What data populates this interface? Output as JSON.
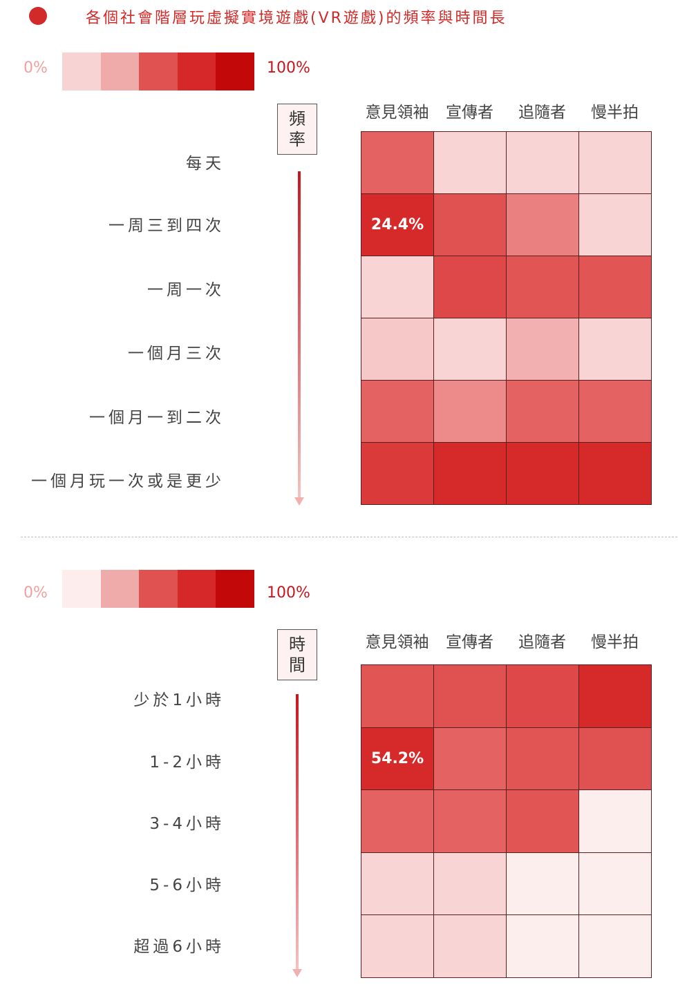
{
  "title": "各個社會階層玩虛擬實境遊戲(VR遊戲)的頻率與時間長",
  "colors": {
    "accent": "#d12a28"
  },
  "charts": [
    {
      "legend": {
        "min_label": "0%",
        "max_label": "100%",
        "swatches": [
          "#f8d3d3",
          "#efaaaa",
          "#e05252",
          "#d62828",
          "#c20808"
        ]
      },
      "axis_label": "頻率"
    },
    {
      "legend": {
        "min_label": "0%",
        "max_label": "100%",
        "swatches": [
          "#fdeded",
          "#efaaaa",
          "#e05252",
          "#d62828",
          "#c20808"
        ]
      },
      "axis_label": "時間"
    }
  ],
  "chart_data": [
    {
      "type": "heatmap",
      "title": "頻率",
      "columns": [
        "意見領袖",
        "宣傳者",
        "追隨者",
        "慢半拍"
      ],
      "rows": [
        "每天",
        "一周三到四次",
        "一周一次",
        "一個月三次",
        "一個月一到二次",
        "一個月玩一次或是更少"
      ],
      "cell_colors": [
        [
          "#e46362",
          "#f8d4d4",
          "#f8d4d4",
          "#f8d4d4"
        ],
        [
          "#d62a2a",
          "#e05252",
          "#ea807f",
          "#f8d4d4"
        ],
        [
          "#f8d4d4",
          "#de4848",
          "#e25555",
          "#e25555"
        ],
        [
          "#f6c8c8",
          "#f8d4d4",
          "#f2b0b0",
          "#f8d4d4"
        ],
        [
          "#e46362",
          "#ec8b8a",
          "#e46362",
          "#e46362"
        ],
        [
          "#da3a3a",
          "#d62a2a",
          "#d62a2a",
          "#d62a2a"
        ]
      ],
      "annotations": [
        {
          "row": 1,
          "col": 0,
          "text": "24.4%"
        }
      ]
    },
    {
      "type": "heatmap",
      "title": "時間",
      "columns": [
        "意見領袖",
        "宣傳者",
        "追隨者",
        "慢半拍"
      ],
      "rows": [
        "少於1小時",
        "1-2小時",
        "3-4小時",
        "5-6小時",
        "超過6小時"
      ],
      "cell_colors": [
        [
          "#e25555",
          "#e05252",
          "#de4848",
          "#d62a2a"
        ],
        [
          "#d62a2a",
          "#e46362",
          "#e25555",
          "#e05252"
        ],
        [
          "#e46362",
          "#e46362",
          "#e25555",
          "#fdeeee"
        ],
        [
          "#f8d4d4",
          "#f8d4d4",
          "#fdeeee",
          "#fdeeee"
        ],
        [
          "#f8d4d4",
          "#f8d4d4",
          "#fdeeee",
          "#fdeeee"
        ]
      ],
      "annotations": [
        {
          "row": 1,
          "col": 0,
          "text": "54.2%"
        }
      ]
    }
  ]
}
